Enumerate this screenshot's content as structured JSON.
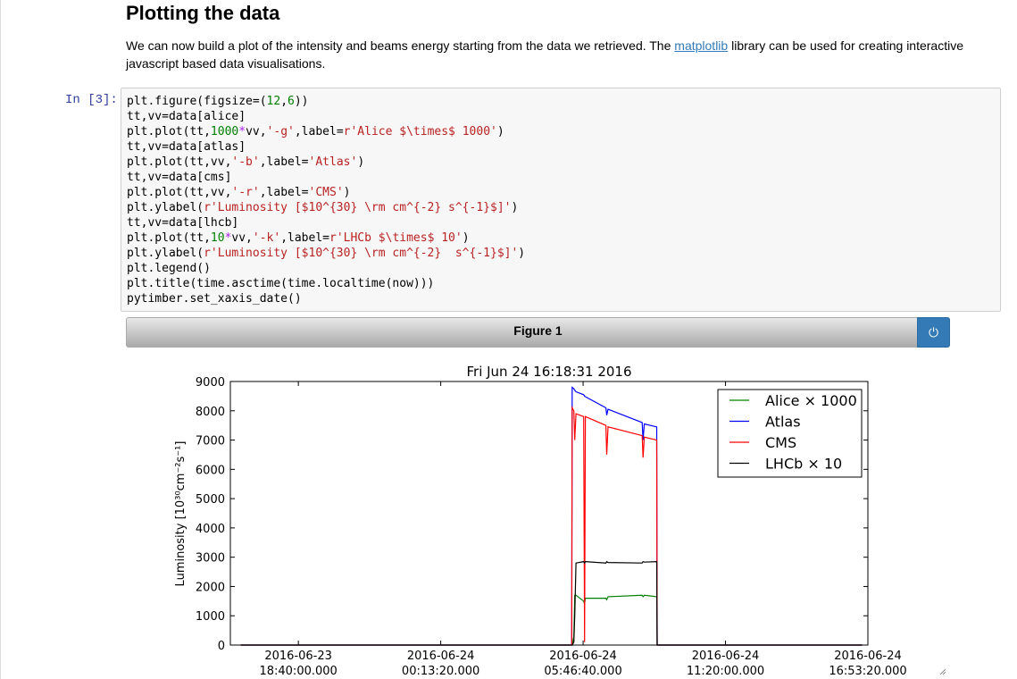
{
  "header": {
    "title": "Plotting the data"
  },
  "paragraph": {
    "before": "We can now build a plot of the intensity and beams energy starting from the data we retrieved. The ",
    "link": "matplotlib",
    "after": " library can be used for creating interactive javascript based data visualisations."
  },
  "cell": {
    "prompt": "In [3]:",
    "code": [
      "plt.figure(figsize=(12,6))",
      "tt,vv=data[alice]",
      "plt.plot(tt,1000*vv,'-g',label=r'Alice $\\times$ 1000')",
      "tt,vv=data[atlas]",
      "plt.plot(tt,vv,'-b',label='Atlas')",
      "tt,vv=data[cms]",
      "plt.plot(tt,vv,'-r',label='CMS')",
      "plt.ylabel(r'Luminosity [$10^{30} \\rm cm^{-2} s^{-1}$]')",
      "tt,vv=data[lhcb]",
      "plt.plot(tt,10*vv,'-k',label=r'LHCb $\\times$ 10')",
      "plt.ylabel(r'Luminosity [$10^{30} \\rm cm^{-2}  s^{-1}$]')",
      "plt.legend()",
      "plt.title(time.asctime(time.localtime(now)))",
      "pytimber.set_xaxis_date()"
    ]
  },
  "figure": {
    "header": "Figure 1"
  },
  "chart_data": {
    "type": "line",
    "title": "Fri Jun 24 16:18:31 2016",
    "y_label": "Luminosity [10³⁰cm⁻²s⁻¹]",
    "x": [
      "2016-06-23 16:25:00",
      "2016-06-24 05:20:00",
      "2016-06-24 05:21:00",
      "2016-06-24 05:25:00",
      "2016-06-24 05:27:00",
      "2016-06-24 05:30:00",
      "2016-06-24 05:48:00",
      "2016-06-24 05:50:00",
      "2016-06-24 05:52:00",
      "2016-06-24 06:40:00",
      "2016-06-24 06:42:00",
      "2016-06-24 06:45:00",
      "2016-06-24 08:05:00",
      "2016-06-24 08:07:00",
      "2016-06-24 08:10:00",
      "2016-06-24 08:39:00",
      "2016-06-24 08:40:00",
      "2016-06-24 16:40:00"
    ],
    "series": [
      {
        "name": "Alice × 1000",
        "color": "#008000",
        "values": [
          0,
          0,
          0,
          300,
          1700,
          1700,
          1500,
          1400,
          1600,
          1600,
          1550,
          1650,
          1700,
          1650,
          1700,
          1650,
          0,
          0
        ]
      },
      {
        "name": "Atlas",
        "color": "#0000ff",
        "values": [
          0,
          0,
          8800,
          8750,
          8700,
          8650,
          8550,
          8500,
          8480,
          8100,
          7850,
          8050,
          7600,
          7000,
          7550,
          7450,
          0,
          0
        ]
      },
      {
        "name": "CMS",
        "color": "#ff0000",
        "values": [
          0,
          0,
          8100,
          8000,
          7000,
          7900,
          7800,
          100,
          7800,
          7500,
          6500,
          7450,
          7150,
          6400,
          7100,
          7000,
          0,
          0
        ]
      },
      {
        "name": "LHCb × 10",
        "color": "#000000",
        "values": [
          0,
          0,
          0,
          100,
          1000,
          2800,
          2850,
          2800,
          2850,
          2800,
          2850,
          2820,
          2800,
          2850,
          2830,
          2850,
          0,
          0
        ]
      }
    ],
    "xlim": [
      "2016-06-23 16:00:50",
      "2016-06-24 16:53:20"
    ],
    "xticks": [
      "2016-06-23 18:40:00.000",
      "2016-06-24 00:13:20.000",
      "2016-06-24 05:46:40.000",
      "2016-06-24 11:20:00.000",
      "2016-06-24 16:53:20.000"
    ],
    "ylim": [
      0,
      9000
    ],
    "yticks": [
      0,
      1000,
      2000,
      3000,
      4000,
      5000,
      6000,
      7000,
      8000,
      9000
    ],
    "legend": "upper right"
  }
}
